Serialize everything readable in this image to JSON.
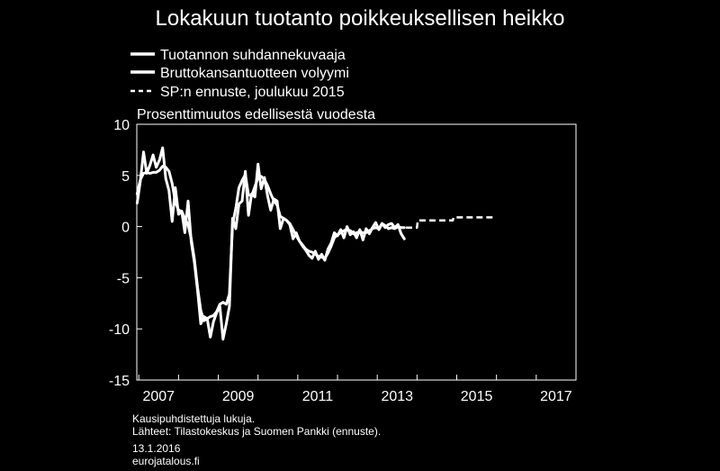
{
  "chart_data": {
    "type": "line",
    "title": "Lokakuun tuotanto poikkeuksellisen heikko",
    "subtitle": "Prosenttimuutos edellisestä vuodesta",
    "ylim": [
      -15,
      10
    ],
    "yticks": [
      10,
      5,
      0,
      -5,
      -10,
      -15
    ],
    "xlim": [
      2006.95,
      2018.0
    ],
    "xticks": [
      {
        "label": "2007",
        "value": 2007.0
      },
      {
        "label": "2009",
        "value": 2009.0
      },
      {
        "label": "2011",
        "value": 2011.0
      },
      {
        "label": "2013",
        "value": 2013.0
      },
      {
        "label": "2015",
        "value": 2015.0
      },
      {
        "label": "2017",
        "value": 2017.0
      }
    ],
    "series": [
      {
        "name": "Tuotannon suhdannekuvaaja",
        "style": "solid",
        "color": "#ffffff",
        "points": [
          [
            2006.96,
            2.3
          ],
          [
            2007.04,
            4.5
          ],
          [
            2007.12,
            7.3
          ],
          [
            2007.2,
            5.2
          ],
          [
            2007.28,
            6.0
          ],
          [
            2007.36,
            7.0
          ],
          [
            2007.44,
            5.8
          ],
          [
            2007.52,
            6.5
          ],
          [
            2007.6,
            7.7
          ],
          [
            2007.68,
            4.7
          ],
          [
            2007.76,
            3.5
          ],
          [
            2007.84,
            0.5
          ],
          [
            2007.92,
            3.8
          ],
          [
            2008.0,
            1.2
          ],
          [
            2008.08,
            1.5
          ],
          [
            2008.16,
            -0.6
          ],
          [
            2008.24,
            2.5
          ],
          [
            2008.32,
            -1.5
          ],
          [
            2008.4,
            -3.5
          ],
          [
            2008.48,
            -6.3
          ],
          [
            2008.56,
            -9.5
          ],
          [
            2008.64,
            -8.8
          ],
          [
            2008.72,
            -9.0
          ],
          [
            2008.8,
            -10.8
          ],
          [
            2008.88,
            -9.3
          ],
          [
            2008.96,
            -8.4
          ],
          [
            2009.04,
            -7.8
          ],
          [
            2009.12,
            -11.0
          ],
          [
            2009.2,
            -9.5
          ],
          [
            2009.28,
            -7.8
          ],
          [
            2009.36,
            0.8
          ],
          [
            2009.44,
            -0.2
          ],
          [
            2009.52,
            2.2
          ],
          [
            2009.6,
            2.5
          ],
          [
            2009.68,
            5.4
          ],
          [
            2009.76,
            1.1
          ],
          [
            2009.84,
            3.2
          ],
          [
            2009.92,
            2.9
          ],
          [
            2010.0,
            6.1
          ],
          [
            2010.08,
            3.7
          ],
          [
            2010.16,
            4.8
          ],
          [
            2010.24,
            3.0
          ],
          [
            2010.32,
            1.6
          ],
          [
            2010.4,
            2.7
          ],
          [
            2010.48,
            2.5
          ],
          [
            2010.56,
            -0.2
          ],
          [
            2010.64,
            0.8
          ],
          [
            2010.72,
            0.6
          ],
          [
            2010.8,
            0.2
          ],
          [
            2010.88,
            -1.2
          ],
          [
            2010.96,
            -0.6
          ],
          [
            2011.04,
            -1.4
          ],
          [
            2011.12,
            -1.9
          ],
          [
            2011.2,
            -2.3
          ],
          [
            2011.28,
            -2.8
          ],
          [
            2011.36,
            -3.1
          ],
          [
            2011.44,
            -2.4
          ],
          [
            2011.52,
            -3.2
          ],
          [
            2011.6,
            -2.7
          ],
          [
            2011.68,
            -3.3
          ],
          [
            2011.76,
            -2.2
          ],
          [
            2011.84,
            -1.6
          ],
          [
            2011.92,
            -0.6
          ],
          [
            2012.0,
            -0.9
          ],
          [
            2012.08,
            -0.3
          ],
          [
            2012.16,
            -1.1
          ],
          [
            2012.24,
            0.0
          ],
          [
            2012.32,
            -0.8
          ],
          [
            2012.4,
            -0.5
          ],
          [
            2012.48,
            -1.1
          ],
          [
            2012.56,
            -0.3
          ],
          [
            2012.64,
            -1.3
          ],
          [
            2012.72,
            -0.2
          ],
          [
            2012.8,
            -0.7
          ],
          [
            2012.88,
            -0.1
          ],
          [
            2012.96,
            0.4
          ],
          [
            2013.04,
            -0.3
          ],
          [
            2013.12,
            0.3
          ],
          [
            2013.2,
            -0.1
          ],
          [
            2013.28,
            0.2
          ],
          [
            2013.36,
            0.3
          ],
          [
            2013.44,
            -0.1
          ],
          [
            2013.52,
            0.2
          ],
          [
            2013.6,
            -0.7
          ],
          [
            2013.68,
            -1.2
          ]
        ]
      },
      {
        "name": "Bruttokansantuotteen volyymi",
        "style": "solid",
        "color": "#ffffff",
        "points": [
          [
            2006.96,
            3.2
          ],
          [
            2007.04,
            4.6
          ],
          [
            2007.12,
            5.2
          ],
          [
            2007.2,
            5.3
          ],
          [
            2007.28,
            5.2
          ],
          [
            2007.36,
            5.3
          ],
          [
            2007.44,
            5.3
          ],
          [
            2007.52,
            5.5
          ],
          [
            2007.6,
            5.9
          ],
          [
            2007.68,
            5.8
          ],
          [
            2007.76,
            5.4
          ],
          [
            2007.84,
            4.2
          ],
          [
            2007.92,
            2.4
          ],
          [
            2008.0,
            1.6
          ],
          [
            2008.08,
            1.5
          ],
          [
            2008.16,
            0.8
          ],
          [
            2008.24,
            0.2
          ],
          [
            2008.32,
            -1.2
          ],
          [
            2008.4,
            -3.2
          ],
          [
            2008.48,
            -6.0
          ],
          [
            2008.56,
            -8.2
          ],
          [
            2008.64,
            -9.2
          ],
          [
            2008.72,
            -9.0
          ],
          [
            2008.8,
            -8.8
          ],
          [
            2008.88,
            -8.7
          ],
          [
            2008.96,
            -8.3
          ],
          [
            2009.04,
            -7.6
          ],
          [
            2009.12,
            -7.4
          ],
          [
            2009.2,
            -7.6
          ],
          [
            2009.28,
            -6.6
          ],
          [
            2009.36,
            0.2
          ],
          [
            2009.44,
            1.8
          ],
          [
            2009.52,
            3.8
          ],
          [
            2009.6,
            4.5
          ],
          [
            2009.68,
            5.1
          ],
          [
            2009.76,
            3.1
          ],
          [
            2009.84,
            3.0
          ],
          [
            2009.92,
            3.9
          ],
          [
            2010.0,
            4.8
          ],
          [
            2010.08,
            4.9
          ],
          [
            2010.16,
            4.6
          ],
          [
            2010.24,
            4.0
          ],
          [
            2010.32,
            3.2
          ],
          [
            2010.4,
            2.5
          ],
          [
            2010.48,
            2.1
          ],
          [
            2010.56,
            1.0
          ],
          [
            2010.64,
            0.8
          ],
          [
            2010.72,
            0.6
          ],
          [
            2010.8,
            0.3
          ],
          [
            2010.88,
            -0.3
          ],
          [
            2010.96,
            -0.9
          ],
          [
            2011.04,
            -1.4
          ],
          [
            2011.12,
            -1.8
          ],
          [
            2011.2,
            -2.2
          ],
          [
            2011.28,
            -2.4
          ],
          [
            2011.36,
            -2.5
          ],
          [
            2011.44,
            -2.7
          ],
          [
            2011.52,
            -2.9
          ],
          [
            2011.6,
            -3.0
          ],
          [
            2011.68,
            -3.1
          ],
          [
            2011.76,
            -2.6
          ],
          [
            2011.84,
            -1.9
          ],
          [
            2011.92,
            -1.1
          ],
          [
            2012.0,
            -0.8
          ],
          [
            2012.08,
            -0.6
          ],
          [
            2012.16,
            -0.4
          ],
          [
            2012.24,
            -0.3
          ],
          [
            2012.32,
            -0.4
          ],
          [
            2012.4,
            -0.7
          ],
          [
            2012.48,
            -0.6
          ],
          [
            2012.56,
            -0.5
          ],
          [
            2012.64,
            -0.6
          ],
          [
            2012.72,
            -0.6
          ],
          [
            2012.8,
            -0.4
          ],
          [
            2012.88,
            -0.2
          ],
          [
            2012.96,
            -0.1
          ],
          [
            2013.04,
            -0.2
          ],
          [
            2013.12,
            0.3
          ],
          [
            2013.2,
            0.1
          ],
          [
            2013.28,
            -0.2
          ],
          [
            2013.36,
            -0.1
          ],
          [
            2013.44,
            -0.2
          ],
          [
            2013.52,
            0.0
          ],
          [
            2013.6,
            -0.1
          ],
          [
            2013.68,
            -0.1
          ]
        ]
      },
      {
        "name": "SP:n ennuste, joulukuu 2015",
        "style": "dashed",
        "color": "#ffffff",
        "points": [
          [
            2013.72,
            -0.1
          ],
          [
            2014.0,
            -0.1
          ],
          [
            2014.02,
            0.6
          ],
          [
            2014.9,
            0.6
          ],
          [
            2014.92,
            0.9
          ],
          [
            2015.9,
            0.9
          ]
        ]
      }
    ],
    "grid": false,
    "legend_position": "top-left",
    "notes": [
      "Kausipuhdistettuja lukuja.",
      "Lähteet: Tilastokeskus ja Suomen Pankki (ennuste).",
      "13.1.2016",
      "eurojatalous.fi"
    ]
  }
}
